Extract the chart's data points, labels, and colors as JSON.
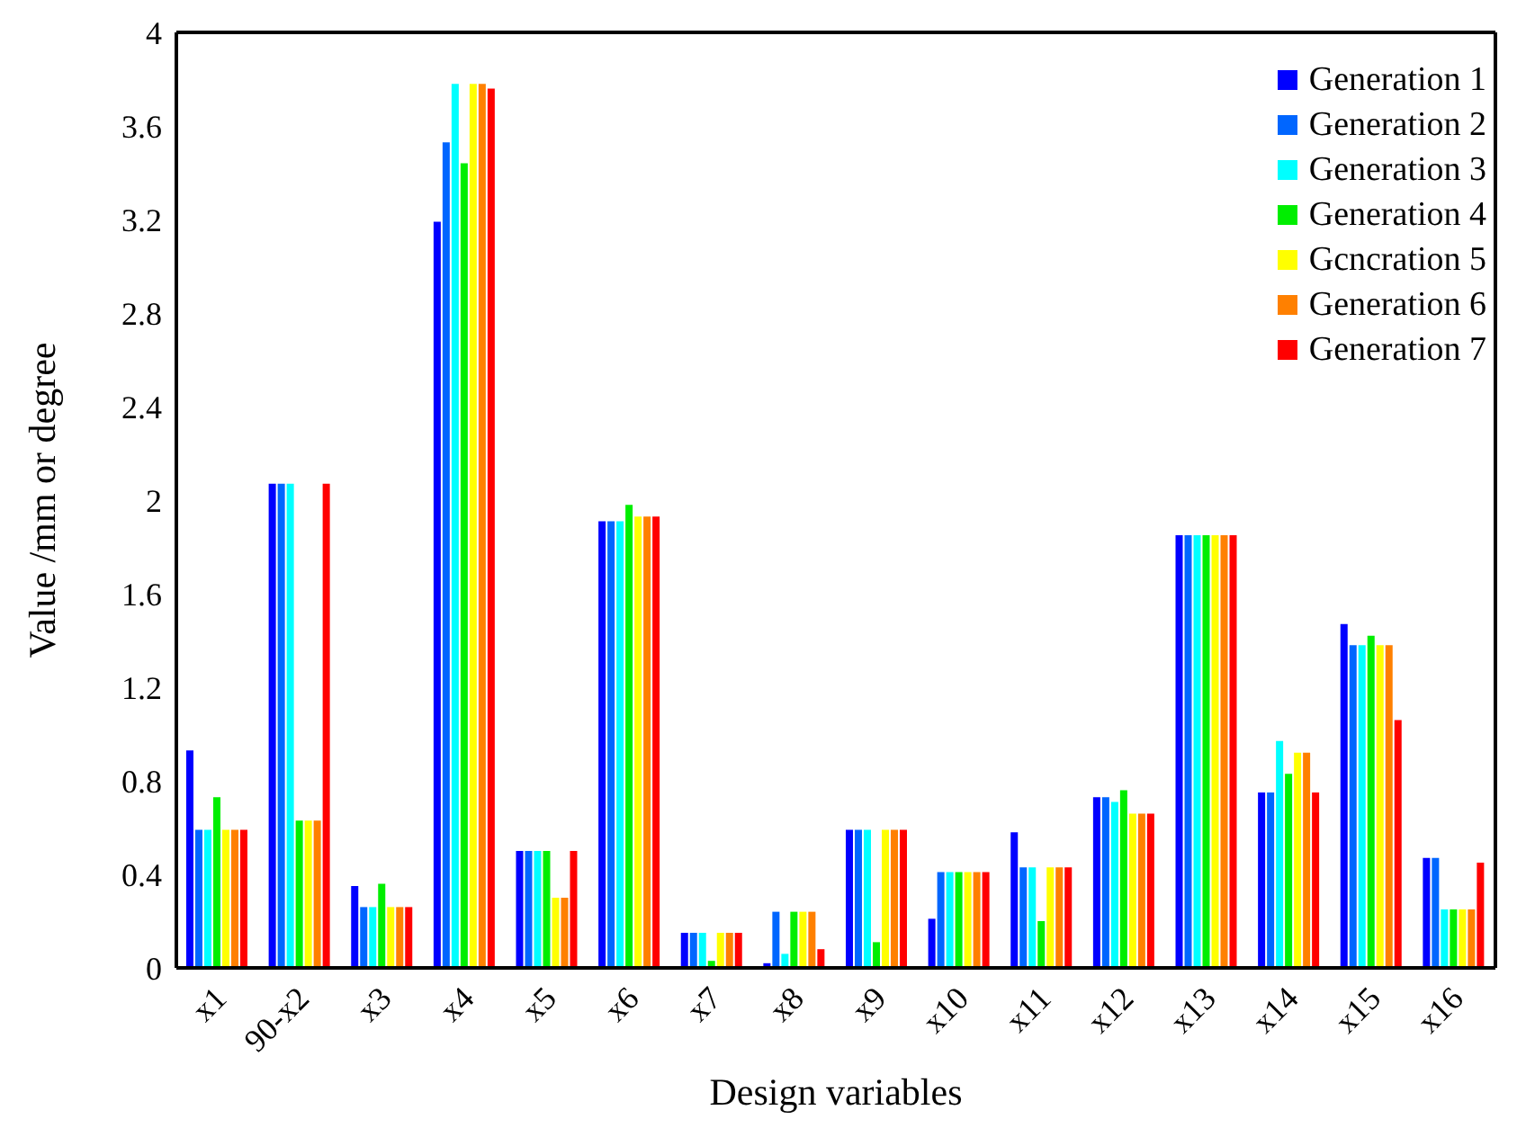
{
  "chart_data": {
    "type": "bar",
    "xlabel": "Design variables",
    "ylabel": "Value /mm or degree",
    "categories": [
      "x1",
      "90-x2",
      "x3",
      "x4",
      "x5",
      "x6",
      "x7",
      "x8",
      "x9",
      "x10",
      "x11",
      "x12",
      "x13",
      "x14",
      "x15",
      "x16"
    ],
    "series": [
      {
        "name": "Generation 1",
        "color": "#0000ff",
        "values": [
          0.93,
          2.07,
          0.35,
          3.19,
          0.5,
          1.91,
          0.15,
          0.02,
          0.59,
          0.21,
          0.58,
          0.73,
          1.85,
          0.75,
          1.47,
          0.47
        ]
      },
      {
        "name": "Generation 2",
        "color": "#0066ff",
        "values": [
          0.59,
          2.07,
          0.26,
          3.53,
          0.5,
          1.91,
          0.15,
          0.24,
          0.59,
          0.41,
          0.43,
          0.73,
          1.85,
          0.75,
          1.38,
          0.47
        ]
      },
      {
        "name": "Generation 3",
        "color": "#00ffff",
        "values": [
          0.59,
          2.07,
          0.26,
          3.78,
          0.5,
          1.91,
          0.15,
          0.06,
          0.59,
          0.41,
          0.43,
          0.71,
          1.85,
          0.97,
          1.38,
          0.25
        ]
      },
      {
        "name": "Generation 4",
        "color": "#00ee00",
        "values": [
          0.73,
          0.63,
          0.36,
          3.44,
          0.5,
          1.98,
          0.03,
          0.24,
          0.11,
          0.41,
          0.2,
          0.76,
          1.85,
          0.83,
          1.42,
          0.25
        ]
      },
      {
        "name": "Gcncration 5",
        "color": "#ffff00",
        "values": [
          0.59,
          0.63,
          0.26,
          3.78,
          0.3,
          1.93,
          0.15,
          0.24,
          0.59,
          0.41,
          0.43,
          0.66,
          1.85,
          0.92,
          1.38,
          0.25
        ]
      },
      {
        "name": "Generation 6",
        "color": "#ff8000",
        "values": [
          0.59,
          0.63,
          0.26,
          3.78,
          0.3,
          1.93,
          0.15,
          0.24,
          0.59,
          0.41,
          0.43,
          0.66,
          1.85,
          0.92,
          1.38,
          0.25
        ]
      },
      {
        "name": "Generation 7",
        "color": "#ff0000",
        "values": [
          0.59,
          2.07,
          0.26,
          3.76,
          0.5,
          1.93,
          0.15,
          0.08,
          0.59,
          0.41,
          0.43,
          0.66,
          1.85,
          0.75,
          1.06,
          0.45
        ]
      }
    ],
    "ylim": [
      0,
      4
    ],
    "yticks": [
      0,
      0.4,
      0.8,
      1.2,
      1.6,
      2,
      2.4,
      2.8,
      3.2,
      3.6,
      4
    ],
    "grid": false,
    "legend": "top right"
  }
}
